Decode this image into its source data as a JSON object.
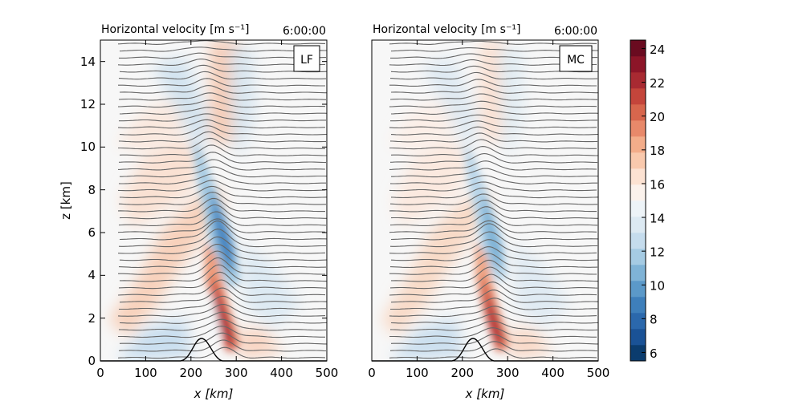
{
  "chart_data": [
    {
      "type": "heatmap",
      "title": "Horizontal velocity [m s⁻¹]",
      "time": "6:00:00",
      "label": "LF",
      "xlabel": "x [km]",
      "ylabel": "z [km]",
      "xlim": [
        0,
        500
      ],
      "ylim": [
        0,
        15
      ],
      "xticks": [
        "0",
        "100",
        "200",
        "300",
        "400",
        "500"
      ],
      "yticks": [
        "0",
        "2",
        "4",
        "6",
        "8",
        "10",
        "12",
        "14"
      ],
      "terrain": {
        "peak_x": 250,
        "peak_height": 1.0
      },
      "grid": false
    },
    {
      "type": "heatmap",
      "title": "Horizontal velocity [m s⁻¹]",
      "time": "6:00:00",
      "label": "MC",
      "xlabel": "x [km]",
      "ylabel": "",
      "xlim": [
        0,
        500
      ],
      "ylim": [
        0,
        15
      ],
      "xticks": [
        "0",
        "100",
        "200",
        "300",
        "400",
        "500"
      ],
      "yticks": [],
      "terrain": {
        "peak_x": 250,
        "peak_height": 1.0
      },
      "grid": false
    }
  ],
  "colorbar": {
    "ticks": [
      "6",
      "8",
      "10",
      "12",
      "14",
      "16",
      "18",
      "20",
      "22",
      "24"
    ],
    "range": [
      5.5,
      24.5
    ],
    "colors": [
      "#0b3c6e",
      "#1a5296",
      "#2b68ac",
      "#3e7fbb",
      "#5b99c9",
      "#7fb3d6",
      "#a5cbe3",
      "#c5dced",
      "#dce9f2",
      "#edf3f7",
      "#fbf2ec",
      "#fce2d2",
      "#f9c9ad",
      "#f3ad8a",
      "#e8896a",
      "#d7664d",
      "#c4453b",
      "#a82a32",
      "#8c1528",
      "#6a0b20"
    ]
  }
}
